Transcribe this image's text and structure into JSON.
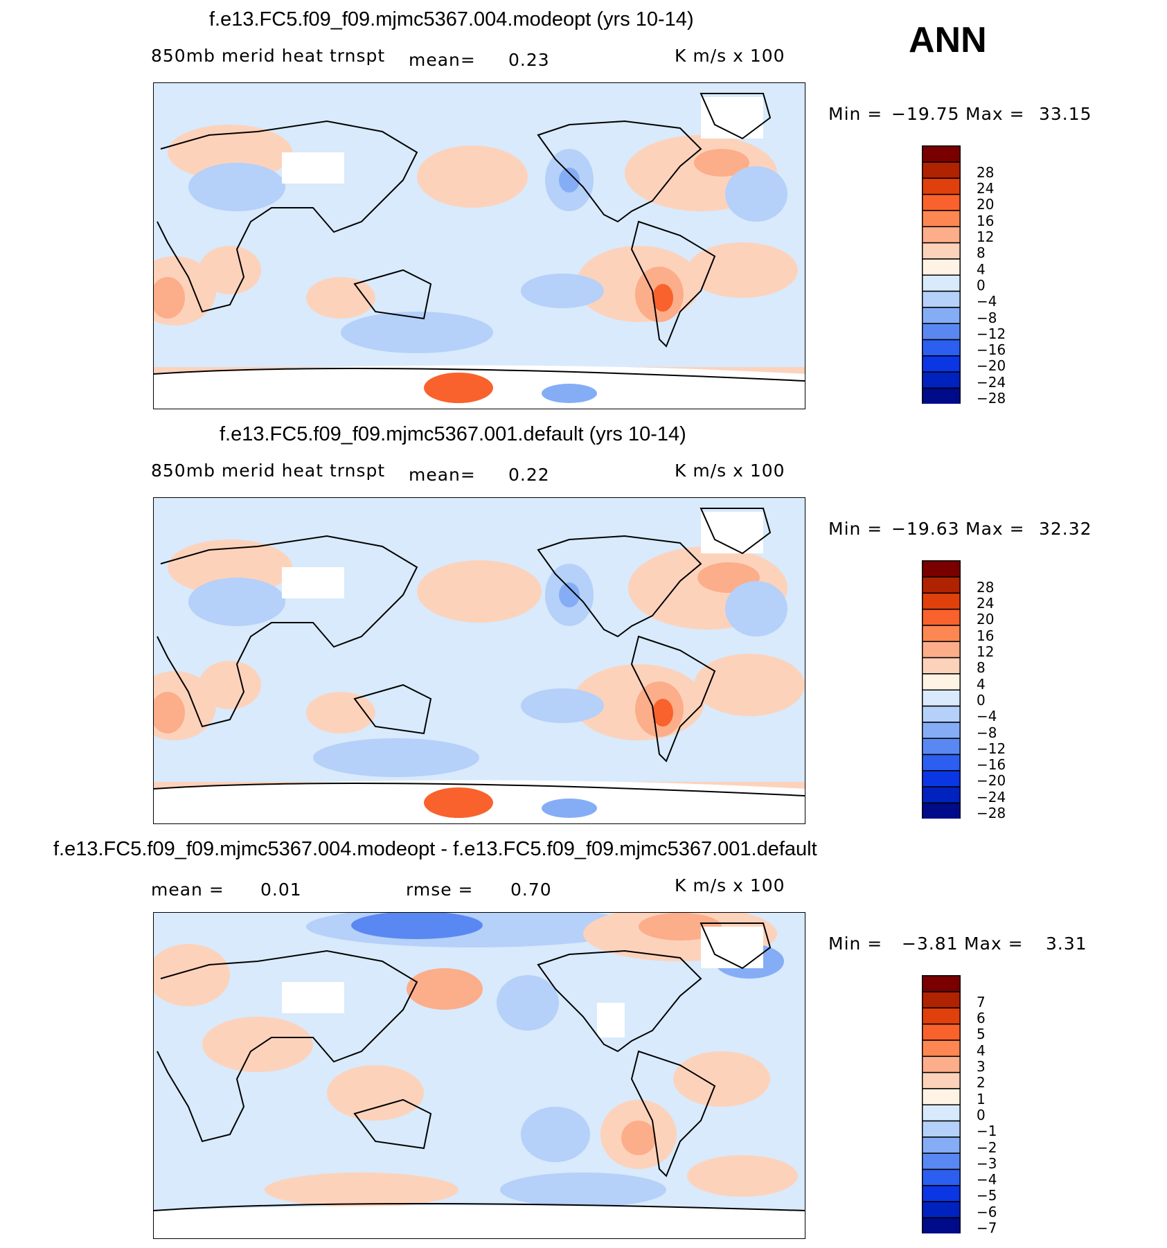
{
  "season": "ANN",
  "units": "K m/s x 100",
  "panels": [
    {
      "title": "f.e13.FC5.f09_f09.mjmc5367.004.modeopt (yrs 10-14)",
      "variable": "850mb merid heat trnspt",
      "mean_label": "mean=",
      "mean_value": "0.23",
      "units": "K m/s x 100",
      "min_label": "Min =",
      "min_value": "−19.75",
      "max_label": "Max =",
      "max_value": "33.15",
      "colorbar_labels": [
        "28",
        "24",
        "20",
        "16",
        "12",
        "8",
        "4",
        "0",
        "−4",
        "−8",
        "−12",
        "−16",
        "−20",
        "−24",
        "−28"
      ]
    },
    {
      "title": "f.e13.FC5.f09_f09.mjmc5367.001.default (yrs 10-14)",
      "variable": "850mb merid heat trnspt",
      "mean_label": "mean=",
      "mean_value": "0.22",
      "units": "K m/s x 100",
      "min_label": "Min =",
      "min_value": "−19.63",
      "max_label": "Max =",
      "max_value": "32.32",
      "colorbar_labels": [
        "28",
        "24",
        "20",
        "16",
        "12",
        "8",
        "4",
        "0",
        "−4",
        "−8",
        "−12",
        "−16",
        "−20",
        "−24",
        "−28"
      ]
    },
    {
      "title": "f.e13.FC5.f09_f09.mjmc5367.004.modeopt - f.e13.FC5.f09_f09.mjmc5367.001.default",
      "mean_label": "mean =",
      "mean_value": "0.01",
      "rmse_label": "rmse =",
      "rmse_value": "0.70",
      "units": "K m/s x 100",
      "min_label": "Min =",
      "min_value": "−3.81",
      "max_label": "Max =",
      "max_value": "3.31",
      "colorbar_labels": [
        "7",
        "6",
        "5",
        "4",
        "3",
        "2",
        "1",
        "0",
        "−1",
        "−2",
        "−3",
        "−4",
        "−5",
        "−6",
        "−7"
      ]
    }
  ],
  "colors": {
    "scale": [
      "#7a0000",
      "#b02300",
      "#e0400b",
      "#f9622c",
      "#fd8752",
      "#fcad8a",
      "#fdd2bb",
      "#fff3e6",
      "#d8eafb",
      "#b5d0f9",
      "#84adf6",
      "#5a88f2",
      "#2c5ff0",
      "#0b36e4",
      "#0023bf",
      "#000b8a"
    ],
    "land_outline": "#000000",
    "ice": "#ffffff"
  }
}
